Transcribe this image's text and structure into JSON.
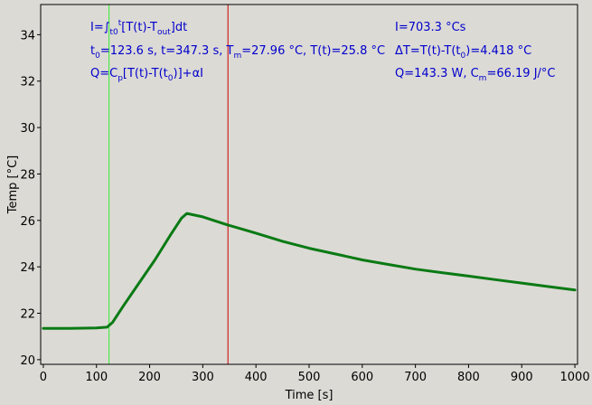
{
  "colors": {
    "background": "#dcdad5",
    "plot_background": "#dcdad5",
    "frame": "#000000",
    "series": "#0a7a14",
    "cursor_start": "#33ee33",
    "cursor_end": "#cc0000",
    "annotation_text": "#0000cc"
  },
  "annotations": {
    "integral_def": {
      "main": "I=∫",
      "sub1": "t0",
      "sup1": "t",
      "mid": "[T(t)-T",
      "sub2": "out",
      "end": "]dt"
    },
    "times": {
      "t0_main": "t",
      "t0_sub": "0",
      "t0_val": "=123.6 s,   t=347.3 s,   T",
      "tm_sub": "m",
      "tm_val": "=27.96 °C,  T(t)=25.8 °C"
    },
    "heat_def": {
      "a": "Q=C",
      "a_sub": "p",
      "b": "[T(t)-T(t",
      "b_sub": "0",
      "c": ")]+αI"
    },
    "integral_value": "I=703.3 °Cs",
    "delta_t": {
      "a": "ΔT=T(t)-T(t",
      "a_sub": "0",
      "b": ")=4.418 °C"
    },
    "q_cm": {
      "a": "Q=143.3 W,   C",
      "a_sub": "m",
      "b": "=66.19 J/°C"
    }
  },
  "chart_data": {
    "type": "line",
    "title": "",
    "xlabel": "Time [s]",
    "ylabel": "Temp [°C]",
    "xlim": [
      -5,
      1005
    ],
    "ylim": [
      19.8,
      35.3
    ],
    "xticks": [
      0,
      100,
      200,
      300,
      400,
      500,
      600,
      700,
      800,
      900,
      1000
    ],
    "yticks": [
      20,
      22,
      24,
      26,
      28,
      30,
      32,
      34
    ],
    "grid": false,
    "legend": "none",
    "vertical_markers": [
      {
        "x": 123.6,
        "color": "#33ee33"
      },
      {
        "x": 347.3,
        "color": "#cc0000"
      }
    ],
    "series": [
      {
        "x": [
          0,
          50,
          100,
          120,
          130,
          150,
          180,
          210,
          240,
          260,
          270,
          280,
          300,
          347.3,
          400,
          450,
          500,
          550,
          600,
          650,
          700,
          750,
          800,
          850,
          900,
          950,
          1000
        ],
        "values": [
          21.35,
          21.35,
          21.37,
          21.4,
          21.6,
          22.3,
          23.3,
          24.3,
          25.4,
          26.1,
          26.3,
          26.25,
          26.15,
          25.8,
          25.45,
          25.1,
          24.8,
          24.55,
          24.3,
          24.1,
          23.9,
          23.75,
          23.6,
          23.45,
          23.3,
          23.15,
          23.0
        ]
      }
    ]
  }
}
